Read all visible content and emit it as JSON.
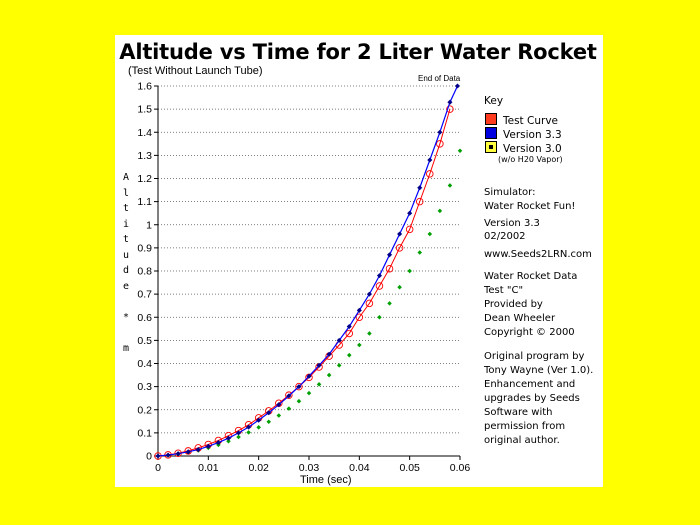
{
  "colors": {
    "background": "#ffff00",
    "test_curve": "#ff0000",
    "version_33": "#0000ff",
    "version_30": "#00a000"
  },
  "chart_data": {
    "type": "line",
    "title": "Altitude vs Time for 2 Liter Water Rocket",
    "subtitle": "(Test Without Launch Tube)",
    "annotation": "End of Data",
    "xlabel": "Time (sec)",
    "ylabel": "Altitude * m",
    "xlim": [
      0,
      0.06
    ],
    "ylim": [
      0,
      1.6
    ],
    "x_ticks": [
      "0",
      "0.01",
      "0.02",
      "0.03",
      "0.04",
      "0.05",
      "0.06"
    ],
    "y_ticks": [
      "0",
      "0.1",
      "0.2",
      "0.3",
      "0.4",
      "0.5",
      "0.6",
      "0.7",
      "0.8",
      "0.9",
      "1",
      "1.1",
      "1.2",
      "1.3",
      "1.4",
      "1.5",
      "1.6"
    ],
    "grid": "horizontal",
    "legend_position": "right",
    "series": [
      {
        "name": "Test Curve",
        "color": "#ff0000",
        "marker": "open-circle",
        "x": [
          0,
          0.002,
          0.004,
          0.006,
          0.008,
          0.01,
          0.012,
          0.014,
          0.016,
          0.018,
          0.02,
          0.022,
          0.024,
          0.026,
          0.028,
          0.03,
          0.032,
          0.034,
          0.036,
          0.038,
          0.04,
          0.042,
          0.044,
          0.046,
          0.048,
          0.05,
          0.052,
          0.054,
          0.056,
          0.058
        ],
        "y": [
          0,
          0.005,
          0.012,
          0.022,
          0.035,
          0.05,
          0.067,
          0.088,
          0.11,
          0.135,
          0.165,
          0.195,
          0.228,
          0.263,
          0.3,
          0.34,
          0.385,
          0.432,
          0.48,
          0.53,
          0.6,
          0.66,
          0.735,
          0.81,
          0.9,
          0.98,
          1.1,
          1.22,
          1.35,
          1.5
        ]
      },
      {
        "name": "Version 3.3",
        "color": "#0000ff",
        "marker": "filled-diamond",
        "x": [
          0,
          0.002,
          0.004,
          0.006,
          0.008,
          0.01,
          0.012,
          0.014,
          0.016,
          0.018,
          0.02,
          0.022,
          0.024,
          0.026,
          0.028,
          0.03,
          0.032,
          0.034,
          0.036,
          0.038,
          0.04,
          0.042,
          0.044,
          0.046,
          0.048,
          0.05,
          0.052,
          0.054,
          0.056,
          0.058,
          0.0595
        ],
        "y": [
          0,
          0.004,
          0.01,
          0.018,
          0.028,
          0.042,
          0.058,
          0.077,
          0.1,
          0.125,
          0.155,
          0.187,
          0.222,
          0.26,
          0.3,
          0.345,
          0.392,
          0.44,
          0.5,
          0.56,
          0.63,
          0.7,
          0.78,
          0.87,
          0.96,
          1.05,
          1.16,
          1.28,
          1.4,
          1.53,
          1.6
        ]
      },
      {
        "name": "Version 3.0",
        "note": "(w/o H20 Vapor)",
        "color": "#00a000",
        "marker": "small-diamond",
        "x": [
          0,
          0.002,
          0.004,
          0.006,
          0.008,
          0.01,
          0.012,
          0.014,
          0.016,
          0.018,
          0.02,
          0.022,
          0.024,
          0.026,
          0.028,
          0.03,
          0.032,
          0.034,
          0.036,
          0.038,
          0.04,
          0.042,
          0.044,
          0.046,
          0.048,
          0.05,
          0.052,
          0.054,
          0.056,
          0.058,
          0.06
        ],
        "y": [
          0,
          0.003,
          0.008,
          0.015,
          0.024,
          0.035,
          0.048,
          0.064,
          0.082,
          0.102,
          0.124,
          0.148,
          0.175,
          0.205,
          0.237,
          0.272,
          0.31,
          0.35,
          0.392,
          0.436,
          0.48,
          0.53,
          0.6,
          0.66,
          0.73,
          0.8,
          0.88,
          0.96,
          1.06,
          1.17,
          1.32
        ]
      }
    ]
  },
  "key": {
    "title": "Key",
    "test_curve_label": "Test Curve",
    "v33_label": "Version 3.3",
    "v30_label": "Version 3.0",
    "v30_note": "(w/o H20 Vapor)"
  },
  "info": {
    "simulator_line1": "Simulator:",
    "simulator_line2": "Water Rocket Fun!",
    "version_line": "Version 3.3",
    "date_line": "02/2002",
    "website": "www.Seeds2LRN.com",
    "data_line1": "Water Rocket Data",
    "data_line2": "Test \"C\"",
    "data_line3": "Provided by",
    "data_line4": "Dean Wheeler",
    "data_line5": "Copyright © 2000",
    "orig_line1": "Original program by",
    "orig_line2": "Tony Wayne (Ver 1.0).",
    "orig_line3": "Enhancement and",
    "orig_line4": "upgrades by Seeds",
    "orig_line5": "Software with",
    "orig_line6": "permission from",
    "orig_line7": "original author."
  }
}
